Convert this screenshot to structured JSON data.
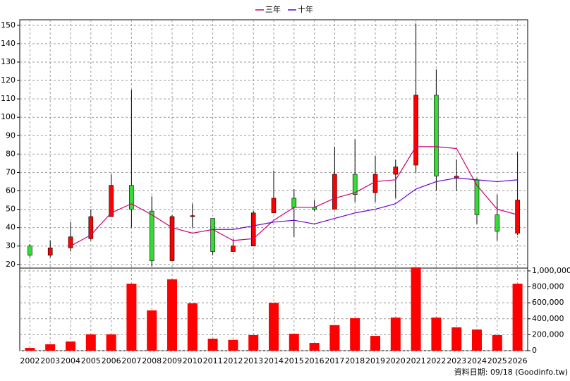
{
  "chart_data": {
    "type": "candlestick",
    "categories": [
      "2002",
      "2003",
      "2004",
      "2005",
      "2006",
      "2007",
      "2008",
      "2009",
      "2010",
      "2011",
      "2012",
      "2013",
      "2014",
      "2015",
      "2016",
      "2017",
      "2018",
      "2019",
      "2020",
      "2021",
      "2022",
      "2023",
      "2024",
      "2025",
      "2026"
    ],
    "open": [
      30,
      25,
      29,
      34,
      46,
      63,
      49,
      22,
      46,
      45,
      27,
      30,
      48,
      56,
      51,
      50,
      69,
      59,
      69,
      74,
      112,
      67,
      66,
      47,
      37
    ],
    "high": [
      31,
      33,
      43,
      50,
      69,
      115,
      57,
      47,
      53,
      45,
      34,
      49,
      71,
      61,
      55,
      84,
      88,
      79,
      77,
      151,
      126,
      77,
      67,
      58,
      81
    ],
    "low": [
      24,
      24,
      27,
      33,
      46,
      40,
      19,
      22,
      40,
      25,
      27,
      30,
      48,
      35,
      49,
      50,
      54,
      54,
      56,
      70,
      60,
      60,
      42,
      33,
      36
    ],
    "close": [
      25,
      29,
      35,
      46,
      63,
      50,
      22,
      46,
      46.5,
      27,
      30,
      48,
      56,
      51,
      50,
      69,
      58,
      69,
      73,
      112,
      68,
      68,
      47,
      38,
      55
    ],
    "up_color": "#ff0000",
    "down_color": "#33dd33",
    "series": [
      {
        "name": "三年",
        "color": "#cc0077",
        "values": [
          null,
          null,
          30,
          36,
          48,
          53,
          47,
          40,
          37,
          39,
          33,
          34,
          44,
          51,
          51,
          56,
          59,
          65,
          66,
          84,
          84,
          83,
          63,
          50,
          47
        ]
      },
      {
        "name": "十年",
        "color": "#6600cc",
        "values": [
          null,
          null,
          null,
          null,
          null,
          null,
          null,
          null,
          null,
          39,
          39,
          41,
          43,
          44,
          42,
          45,
          48,
          50,
          53,
          61,
          65,
          67,
          66,
          65,
          66
        ]
      }
    ],
    "ylim": [
      18,
      153
    ],
    "yticks": [
      20,
      30,
      40,
      50,
      60,
      70,
      80,
      90,
      100,
      110,
      120,
      130,
      140,
      150
    ],
    "volume": {
      "color": "#ff0000",
      "values": [
        35000,
        80000,
        115000,
        205000,
        205000,
        840000,
        505000,
        895000,
        595000,
        150000,
        135000,
        195000,
        600000,
        212000,
        97000,
        320000,
        407000,
        185000,
        415000,
        1045000,
        415000,
        292000,
        265000,
        195000,
        840000
      ],
      "ylim": [
        0,
        1035000
      ],
      "yticks": [
        {
          "value": 0,
          "label": "0"
        },
        {
          "value": 200000,
          "label": "200,000"
        },
        {
          "value": 400000,
          "label": "400,000"
        },
        {
          "value": 600000,
          "label": "600,000"
        },
        {
          "value": 800000,
          "label": "800,000"
        },
        {
          "value": 1000000,
          "label": "1,000,000"
        }
      ]
    },
    "grid": true,
    "footer": "資料日期: 09/18 (Goodinfo.tw)"
  }
}
